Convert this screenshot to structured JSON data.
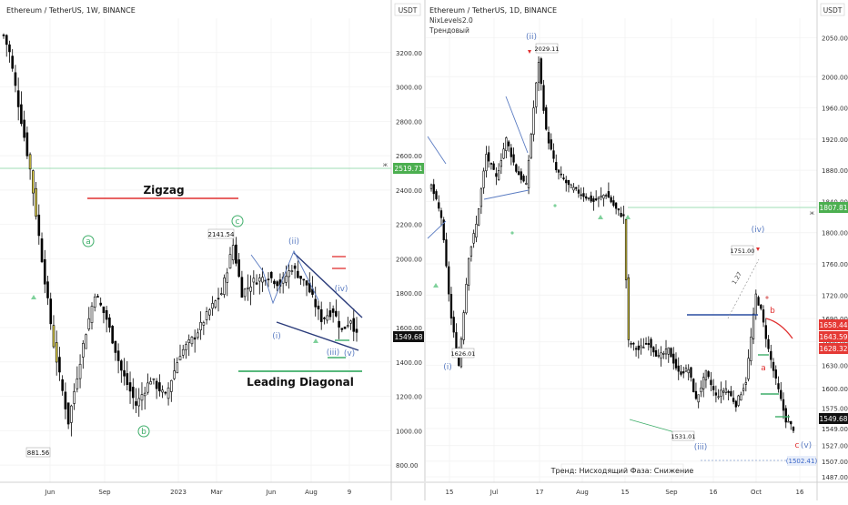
{
  "chart_data": [
    {
      "type": "candlestick",
      "title": "Ethereum / TetherUS, 1W, BINANCE",
      "currency": "USDT",
      "ylim": [
        700,
        3400
      ],
      "y_ticks": [
        "3200.00",
        "3000.00",
        "2800.00",
        "2600.00",
        "2400.00",
        "2200.00",
        "2000.00",
        "1800.00",
        "1600.00",
        "1400.00",
        "1200.00",
        "1000.00",
        "800.00"
      ],
      "x_ticks": [
        "Jun",
        "Sep",
        "2023",
        "Mar",
        "Jun",
        "Aug",
        "9"
      ],
      "last_price": "1549.68",
      "level_price": "2519.71",
      "annotations": {
        "zigzag": "Zigzag",
        "leading_diagonal": "Leading Diagonal",
        "wave_a": "a",
        "wave_b": "b",
        "wave_c": "c",
        "wave_i": "(i)",
        "wave_ii": "(ii)",
        "wave_iii": "(iii)",
        "wave_iv": "(iv)",
        "wave_v": "(v)",
        "high_label": "2141.54",
        "low_label": "881.56"
      },
      "anchors": [
        {
          "i": 0,
          "v": 3300
        },
        {
          "i": 2,
          "v": 3200
        },
        {
          "i": 5,
          "v": 2900
        },
        {
          "i": 9,
          "v": 2520
        },
        {
          "i": 13,
          "v": 2000
        },
        {
          "i": 17,
          "v": 1500
        },
        {
          "i": 22,
          "v": 1050
        },
        {
          "i": 27,
          "v": 1500
        },
        {
          "i": 31,
          "v": 1800
        },
        {
          "i": 35,
          "v": 1650
        },
        {
          "i": 40,
          "v": 1350
        },
        {
          "i": 45,
          "v": 1150
        },
        {
          "i": 50,
          "v": 1300
        },
        {
          "i": 55,
          "v": 1200
        },
        {
          "i": 60,
          "v": 1450
        },
        {
          "i": 65,
          "v": 1550
        },
        {
          "i": 70,
          "v": 1700
        },
        {
          "i": 74,
          "v": 1800
        },
        {
          "i": 78,
          "v": 2080
        },
        {
          "i": 81,
          "v": 1800
        },
        {
          "i": 85,
          "v": 1870
        },
        {
          "i": 90,
          "v": 1900
        },
        {
          "i": 94,
          "v": 1850
        },
        {
          "i": 98,
          "v": 1950
        },
        {
          "i": 103,
          "v": 1850
        },
        {
          "i": 108,
          "v": 1650
        },
        {
          "i": 112,
          "v": 1700
        },
        {
          "i": 115,
          "v": 1580
        },
        {
          "i": 118,
          "v": 1650
        },
        {
          "i": 120,
          "v": 1550
        }
      ]
    },
    {
      "type": "candlestick",
      "title": "Ethereum / TetherUS, 1D, BINANCE",
      "indicators": [
        "NixLevels2.0",
        "Трендовый"
      ],
      "currency": "USDT",
      "ylim": [
        1480,
        2075
      ],
      "y_ticks": [
        "2050.00",
        "2000.00",
        "1960.00",
        "1920.00",
        "1880.00",
        "1840.00",
        "1800.00",
        "1760.00",
        "1720.00",
        "1690.00",
        "1660.00",
        "1630.00",
        "1600.00",
        "1575.00",
        "1549.00",
        "1527.00",
        "1507.00",
        "1487.00"
      ],
      "x_ticks": [
        "15",
        "Jul",
        "17",
        "Aug",
        "15",
        "Sep",
        "16",
        "Oct",
        "16"
      ],
      "last_price": "1549.68",
      "level_price": "1807.81",
      "levels": [
        "1658.44",
        "1643.59",
        "1628.32"
      ],
      "annotations": {
        "wave_i": "(i)",
        "wave_ii": "(ii)",
        "wave_iii": "(iii)",
        "wave_iv": "(iv)",
        "wave_v": "(v)",
        "wave_a": "a",
        "wave_b": "b",
        "wave_c": "c",
        "fib_ratio": "1.27",
        "high_label": "2029.11",
        "mid_high_label": "1751.00",
        "low_label_1": "1626.01",
        "low_label_2": "1531.01",
        "target_label": "(1502.41)",
        "status_text": "Тренд: Нисходящий  Фаза: Снижение"
      },
      "anchors": [
        {
          "i": 0,
          "v": 1860
        },
        {
          "i": 4,
          "v": 1820
        },
        {
          "i": 8,
          "v": 1690
        },
        {
          "i": 11,
          "v": 1630
        },
        {
          "i": 15,
          "v": 1770
        },
        {
          "i": 18,
          "v": 1810
        },
        {
          "i": 22,
          "v": 1900
        },
        {
          "i": 26,
          "v": 1870
        },
        {
          "i": 30,
          "v": 1920
        },
        {
          "i": 34,
          "v": 1880
        },
        {
          "i": 38,
          "v": 1860
        },
        {
          "i": 41,
          "v": 1960
        },
        {
          "i": 43,
          "v": 2020
        },
        {
          "i": 46,
          "v": 1930
        },
        {
          "i": 50,
          "v": 1880
        },
        {
          "i": 55,
          "v": 1860
        },
        {
          "i": 60,
          "v": 1850
        },
        {
          "i": 65,
          "v": 1840
        },
        {
          "i": 70,
          "v": 1850
        },
        {
          "i": 74,
          "v": 1830
        },
        {
          "i": 77,
          "v": 1820
        },
        {
          "i": 79,
          "v": 1660
        },
        {
          "i": 83,
          "v": 1650
        },
        {
          "i": 87,
          "v": 1660
        },
        {
          "i": 91,
          "v": 1640
        },
        {
          "i": 95,
          "v": 1650
        },
        {
          "i": 99,
          "v": 1620
        },
        {
          "i": 103,
          "v": 1625
        },
        {
          "i": 106,
          "v": 1585
        },
        {
          "i": 110,
          "v": 1620
        },
        {
          "i": 114,
          "v": 1590
        },
        {
          "i": 118,
          "v": 1600
        },
        {
          "i": 122,
          "v": 1580
        },
        {
          "i": 126,
          "v": 1610
        },
        {
          "i": 130,
          "v": 1720
        },
        {
          "i": 132,
          "v": 1700
        },
        {
          "i": 135,
          "v": 1650
        },
        {
          "i": 138,
          "v": 1610
        },
        {
          "i": 142,
          "v": 1560
        },
        {
          "i": 145,
          "v": 1549
        }
      ]
    }
  ],
  "colors": {
    "up": "#000000",
    "down": "#000000",
    "up_fill": "#ffffff",
    "down_fill": "#000000",
    "highlight": "#e8d84a",
    "level_green": "#4caf50",
    "wave_green": "#3fae6a",
    "wave_blue": "#5b7cc2",
    "zigzag_red": "#e03030",
    "diagonal_navy": "#2a3b7a",
    "price_label_bg": "#000000",
    "level_label_bg": "#4caf50",
    "target_blue": "#3a66c8"
  }
}
